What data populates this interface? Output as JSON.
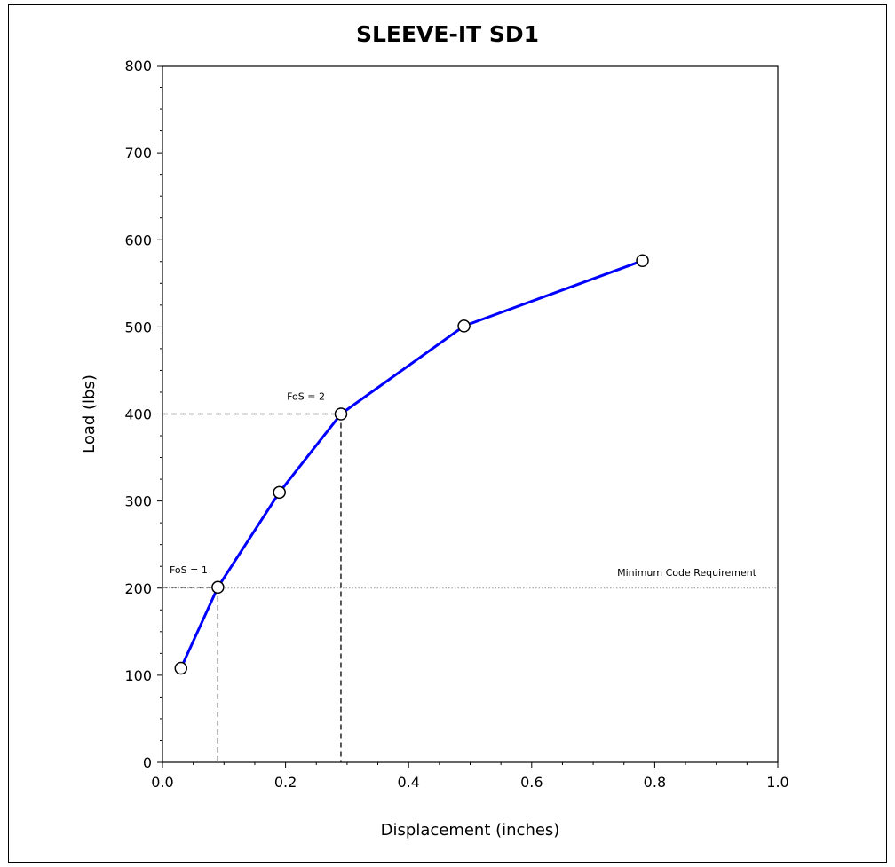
{
  "chart_data": {
    "type": "line",
    "title": "SLEEVE-IT SD1",
    "xlabel": "Displacement (inches)",
    "ylabel": "Load (lbs)",
    "xlim": [
      0,
      1.0
    ],
    "ylim": [
      0,
      800
    ],
    "x_ticks": [
      "0.0",
      "0.2",
      "0.4",
      "0.6",
      "0.8",
      "1.0"
    ],
    "y_ticks": [
      "0",
      "100",
      "200",
      "300",
      "400",
      "500",
      "600",
      "700",
      "800"
    ],
    "grid": false,
    "series": [
      {
        "color": "#0000ff",
        "x": [
          0.03,
          0.09,
          0.19,
          0.29,
          0.49,
          0.78
        ],
        "y": [
          108,
          201,
          310,
          400,
          501,
          576
        ]
      }
    ],
    "reference_line": {
      "y": 200,
      "label": "Minimum Code Requirement",
      "color": "#999999"
    },
    "markers": [
      {
        "label": "FoS = 1",
        "x": 0.09,
        "y": 201
      },
      {
        "label": "FoS = 2",
        "x": 0.29,
        "y": 400
      }
    ]
  }
}
